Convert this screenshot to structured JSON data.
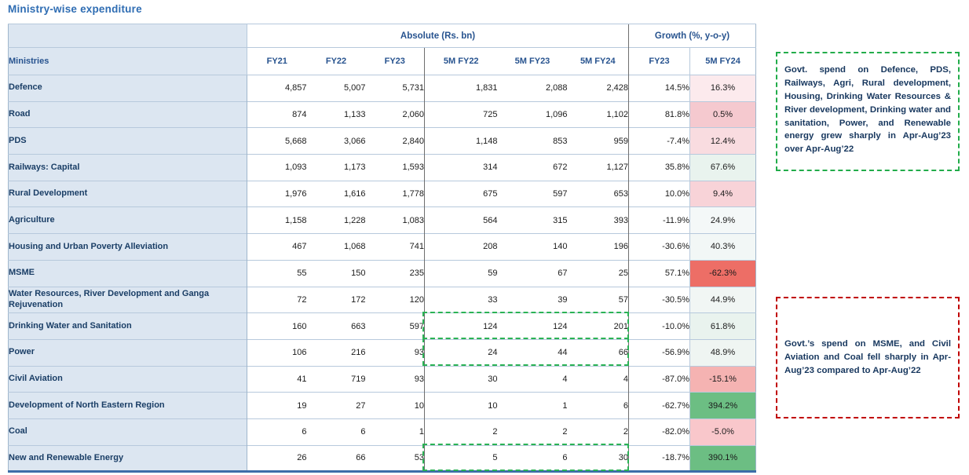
{
  "title": "Ministry-wise expenditure",
  "table": {
    "group_headers": [
      {
        "label": "Absolute (Rs. bn)"
      },
      {
        "label": "Growth (%, y-o-y)"
      }
    ],
    "ministries_header": "Ministries",
    "sub_headers": [
      "FY21",
      "FY22",
      "FY23",
      "5M FY22",
      "5M FY23",
      "5M FY24",
      "FY23",
      "5M FY24"
    ],
    "rows": [
      {
        "ministry": "Defence",
        "values": [
          "4,857",
          "5,007",
          "5,731",
          "1,831",
          "2,088",
          "2,428",
          "14.5%",
          "16.3%"
        ],
        "growth_bg": "#fceaed",
        "dash_highlight": false
      },
      {
        "ministry": "Road",
        "values": [
          "874",
          "1,133",
          "2,060",
          "725",
          "1,096",
          "1,102",
          "81.8%",
          "0.5%"
        ],
        "growth_bg": "#f5c9cf",
        "dash_highlight": false
      },
      {
        "ministry": "PDS",
        "values": [
          "5,668",
          "3,066",
          "2,840",
          "1,148",
          "853",
          "959",
          "-7.4%",
          "12.4%"
        ],
        "growth_bg": "#f9dce0",
        "dash_highlight": false
      },
      {
        "ministry": "Railways: Capital",
        "values": [
          "1,093",
          "1,173",
          "1,593",
          "314",
          "672",
          "1,127",
          "35.8%",
          "67.6%"
        ],
        "growth_bg": "#e9f3ee",
        "dash_highlight": false
      },
      {
        "ministry": "Rural Development",
        "values": [
          "1,976",
          "1,616",
          "1,778",
          "675",
          "597",
          "653",
          "10.0%",
          "9.4%"
        ],
        "growth_bg": "#f8d3d8",
        "dash_highlight": false
      },
      {
        "ministry": "Agriculture",
        "values": [
          "1,158",
          "1,228",
          "1,083",
          "564",
          "315",
          "393",
          "-11.9%",
          "24.9%"
        ],
        "growth_bg": "#f4f8f8",
        "dash_highlight": false
      },
      {
        "ministry": "Housing and Urban Poverty Alleviation",
        "values": [
          "467",
          "1,068",
          "741",
          "208",
          "140",
          "196",
          "-30.6%",
          "40.3%"
        ],
        "growth_bg": "#f2f7f6",
        "dash_highlight": false
      },
      {
        "ministry": "MSME",
        "values": [
          "55",
          "150",
          "235",
          "59",
          "67",
          "25",
          "57.1%",
          "-62.3%"
        ],
        "growth_bg": "#ed6e66",
        "dash_highlight": false
      },
      {
        "ministry": "Water Resources, River Development and Ganga Rejuvenation",
        "values": [
          "72",
          "172",
          "120",
          "33",
          "39",
          "57",
          "-30.5%",
          "44.9%"
        ],
        "growth_bg": "#f1f6f4",
        "dash_highlight": false
      },
      {
        "ministry": "Drinking Water and Sanitation",
        "values": [
          "160",
          "663",
          "597",
          "124",
          "124",
          "201",
          "-10.0%",
          "61.8%"
        ],
        "growth_bg": "#e9f3ee",
        "dash_highlight": true
      },
      {
        "ministry": "Power",
        "values": [
          "106",
          "216",
          "93",
          "24",
          "44",
          "66",
          "-56.9%",
          "48.9%"
        ],
        "growth_bg": "#eff5f2",
        "dash_highlight": true
      },
      {
        "ministry": "Civil Aviation",
        "values": [
          "41",
          "719",
          "93",
          "30",
          "4",
          "4",
          "-87.0%",
          "-15.1%"
        ],
        "growth_bg": "#f5b3b2",
        "dash_highlight": false
      },
      {
        "ministry": "Development of North Eastern Region",
        "values": [
          "19",
          "27",
          "10",
          "10",
          "1",
          "6",
          "-62.7%",
          "394.2%"
        ],
        "growth_bg": "#6cbe83",
        "dash_highlight": false
      },
      {
        "ministry": "Coal",
        "values": [
          "6",
          "6",
          "1",
          "2",
          "2",
          "2",
          "-82.0%",
          "-5.0%"
        ],
        "growth_bg": "#f9c7cb",
        "dash_highlight": false
      },
      {
        "ministry": "New and Renewable Energy",
        "values": [
          "26",
          "66",
          "53",
          "5",
          "6",
          "30",
          "-18.7%",
          "390.1%"
        ],
        "growth_bg": "#6cbe83",
        "dash_highlight": true
      }
    ]
  },
  "annotations": {
    "growth_note": {
      "text": "Govt. spend on Defence, PDS, Railways, Agri, Rural development, Housing, Drinking Water Resources & River development, Drinking water and sanitation, Power, and Renewable energy grew sharply in Apr-Aug’23 over Apr-Aug’22",
      "border_color": "#22ac4a"
    },
    "decline_note": {
      "text": "Govt.’s spend on MSME, and Civil Aviation and Coal fell sharply in Apr-Aug’23 compared to Apr-Aug’22",
      "border_color": "#c00000"
    }
  },
  "colors": {
    "header_bg": "#dce6f1",
    "header_text": "#27538f",
    "title_text": "#2f6db3",
    "strong_red": "#ed6e66",
    "strong_green": "#6cbe83",
    "dash_highlight_green": "#2bb255"
  }
}
